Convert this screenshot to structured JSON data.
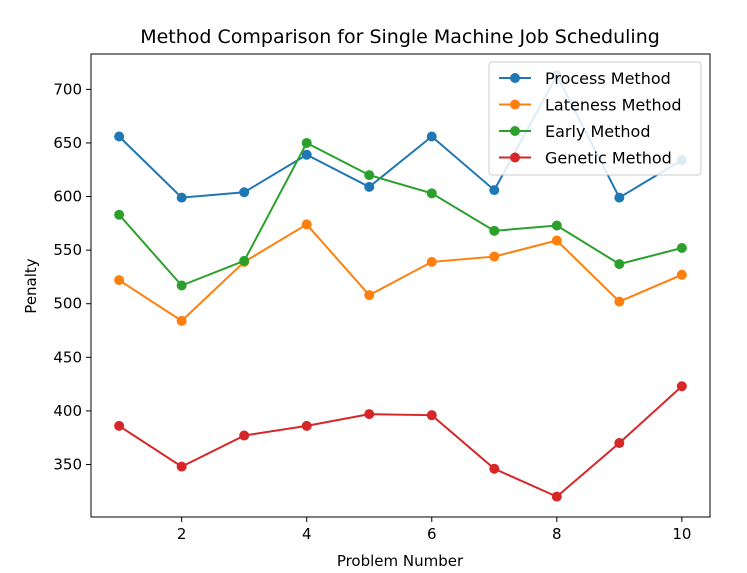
{
  "chart_data": {
    "type": "line",
    "title": "Method Comparison for Single Machine Job Scheduling",
    "xlabel": "Problem Number",
    "ylabel": "Penalty",
    "x": [
      1,
      2,
      3,
      4,
      5,
      6,
      7,
      8,
      9,
      10
    ],
    "xlim": [
      0.55,
      10.45
    ],
    "ylim": [
      301,
      733
    ],
    "xticks": [
      2,
      4,
      6,
      8,
      10
    ],
    "yticks": [
      350,
      400,
      450,
      500,
      550,
      600,
      650,
      700
    ],
    "grid": false,
    "legend_position": "top-right",
    "series": [
      {
        "name": "Process Method",
        "color": "#1f77b4",
        "values": [
          656,
          599,
          604,
          639,
          609,
          656,
          606,
          713,
          599,
          634
        ]
      },
      {
        "name": "Lateness Method",
        "color": "#ff7f0e",
        "values": [
          522,
          484,
          539,
          574,
          508,
          539,
          544,
          559,
          502,
          527
        ]
      },
      {
        "name": "Early Method",
        "color": "#2ca02c",
        "values": [
          583,
          517,
          540,
          650,
          620,
          603,
          568,
          573,
          537,
          552
        ]
      },
      {
        "name": "Genetic Method",
        "color": "#d62728",
        "values": [
          386,
          348,
          377,
          386,
          397,
          396,
          346,
          320,
          370,
          423
        ]
      }
    ]
  }
}
